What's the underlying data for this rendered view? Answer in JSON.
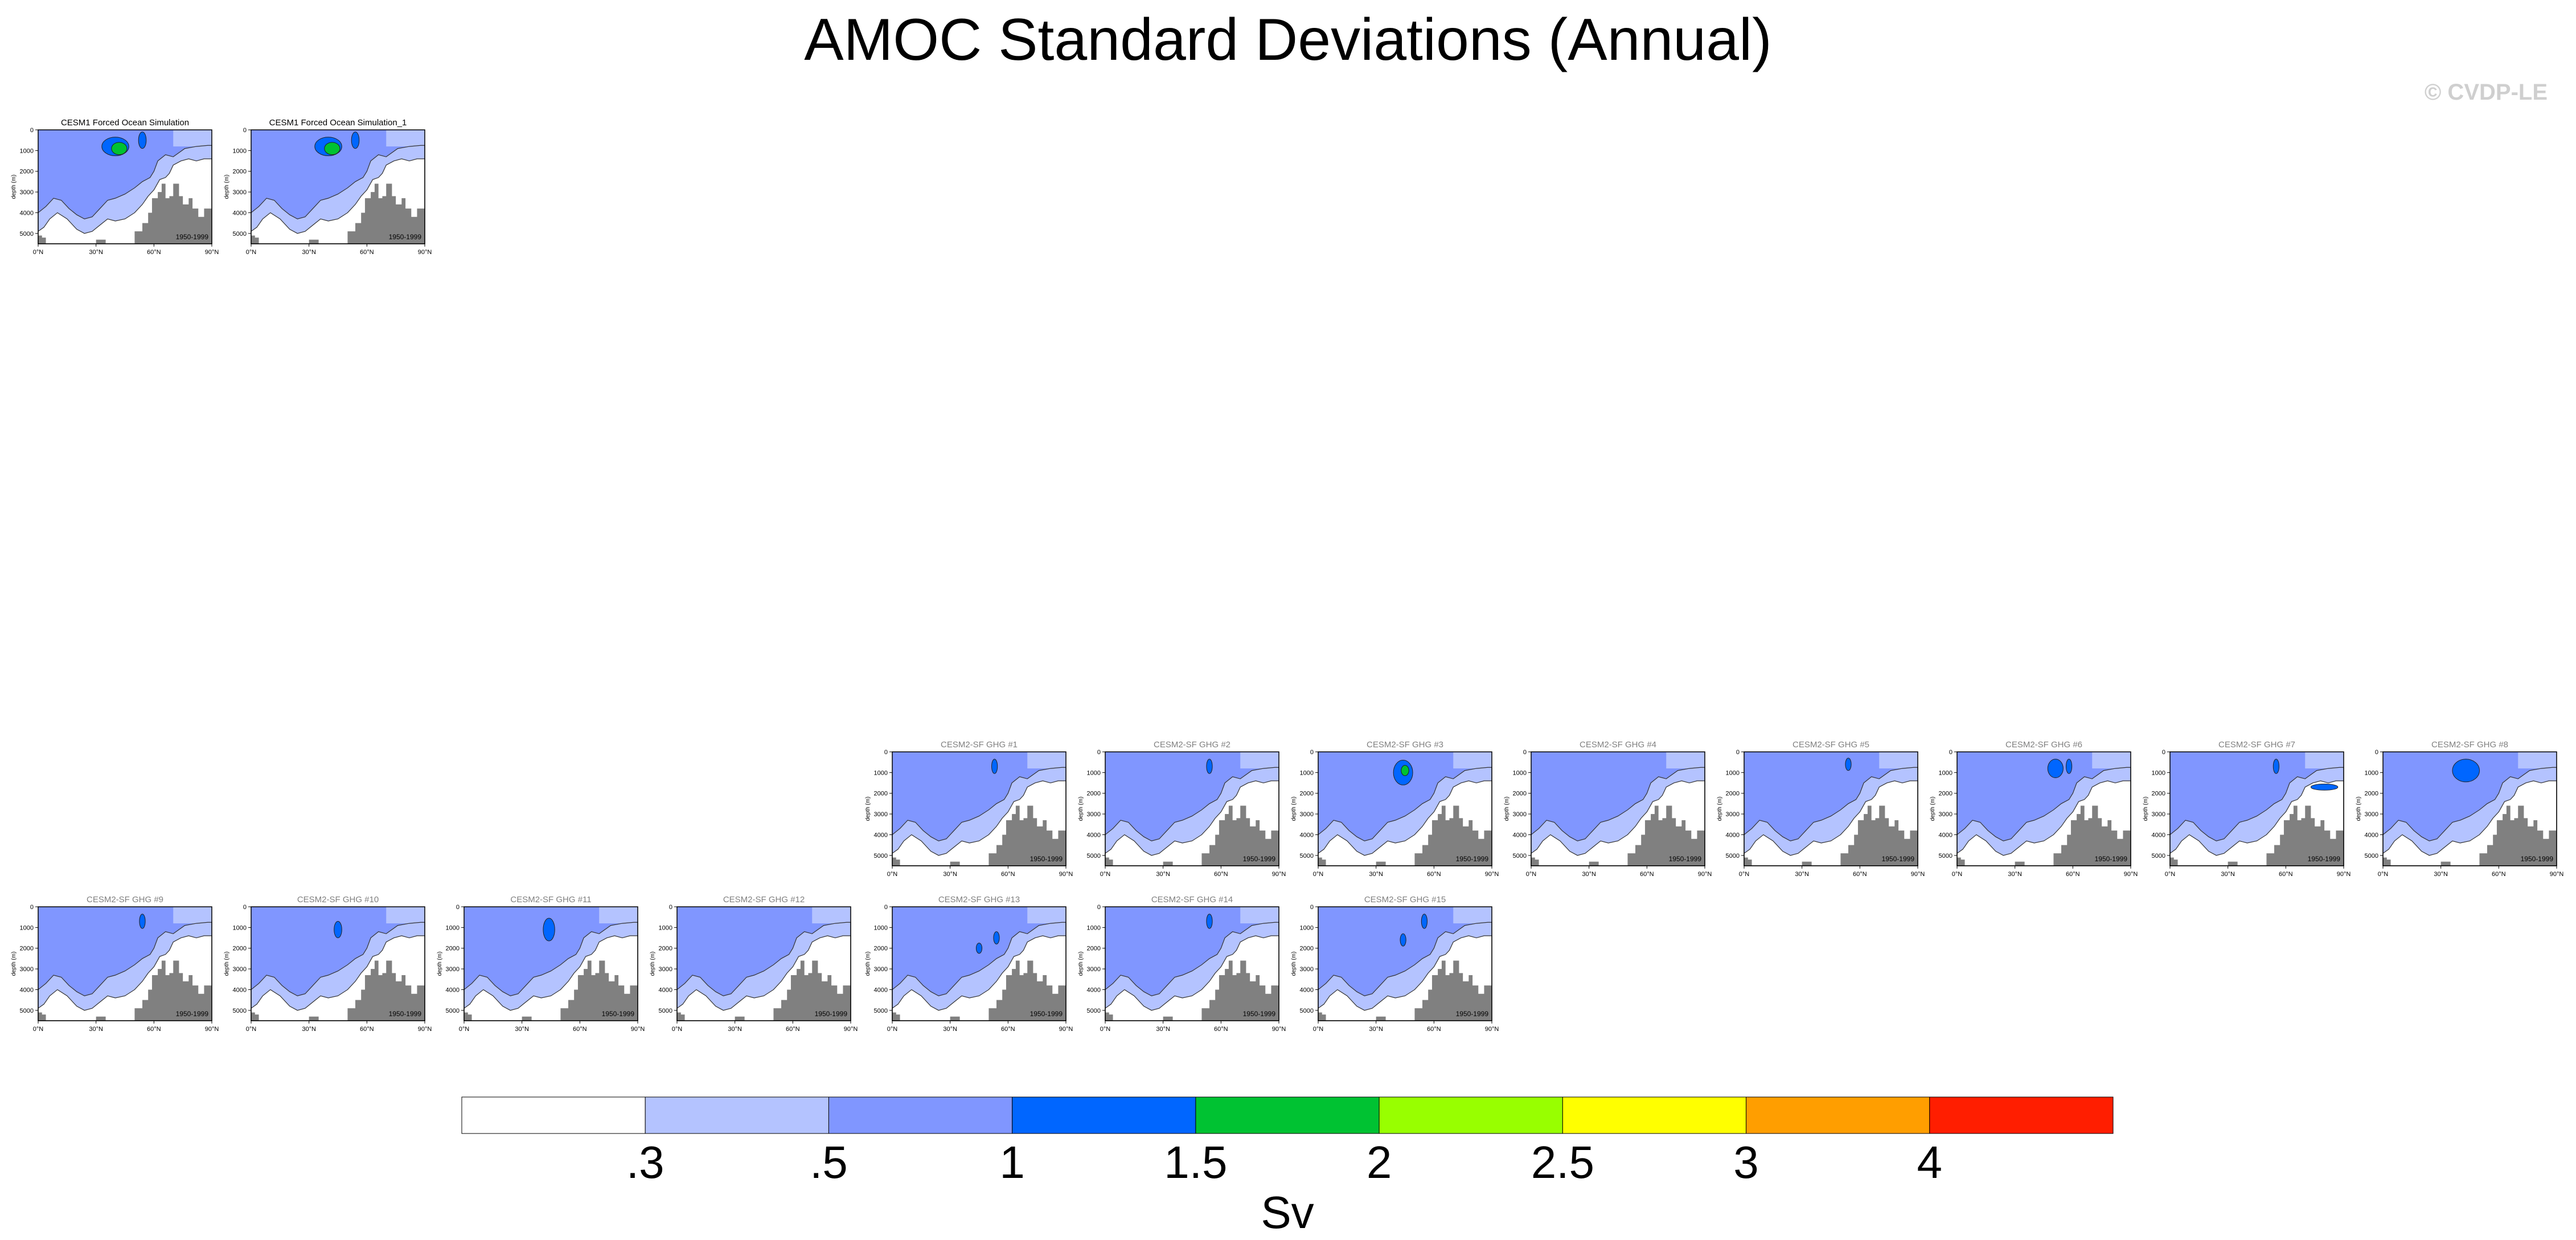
{
  "title": "AMOC Standard Deviations (Annual)",
  "watermark": "© CVDP-LE",
  "chart_data": {
    "type": "heatmap",
    "description_variable": "Atlantic meridional overturning circulation annual standard deviation",
    "x_ticks": [
      "0°N",
      "30°N",
      "60°N",
      "90°N"
    ],
    "y_ticks": [
      "0",
      "1000",
      "2000",
      "3000",
      "4000",
      "5000"
    ],
    "y_label": "depth (m)",
    "period": "1950-1999",
    "colorbar": {
      "unit": "Sv",
      "levels": [
        ".3",
        ".5",
        "1",
        "1.5",
        "2",
        "2.5",
        "3",
        "4"
      ],
      "colors": [
        "#ffffff",
        "#b4c3ff",
        "#8096ff",
        "#0066ff",
        "#00c232",
        "#98ff00",
        "#ffff00",
        "#ff9e00",
        "#ff1e00"
      ]
    },
    "panels": [
      {
        "title": "CESM1 Forced Ocean Simulation",
        "title_color": "#000000",
        "max_class": 4,
        "features": [
          {
            "lat": 40,
            "depth": 800,
            "rx": 7,
            "ry": 450,
            "c": 3
          },
          {
            "lat": 42,
            "depth": 900,
            "rx": 4,
            "ry": 300,
            "c": 4
          },
          {
            "lat": 54,
            "depth": 500,
            "rx": 2,
            "ry": 400,
            "c": 3
          }
        ]
      },
      {
        "title": "CESM1 Forced Ocean Simulation_1",
        "title_color": "#000000",
        "max_class": 4,
        "features": [
          {
            "lat": 40,
            "depth": 800,
            "rx": 7,
            "ry": 450,
            "c": 3
          },
          {
            "lat": 42,
            "depth": 900,
            "rx": 4,
            "ry": 300,
            "c": 4
          },
          {
            "lat": 54,
            "depth": 500,
            "rx": 2,
            "ry": 400,
            "c": 3
          }
        ]
      },
      {
        "title": "CESM2-SF GHG #1",
        "title_color": "#808080",
        "features": [
          {
            "lat": 53,
            "depth": 700,
            "rx": 1.5,
            "ry": 350,
            "c": 3
          }
        ]
      },
      {
        "title": "CESM2-SF GHG #2",
        "title_color": "#808080",
        "features": [
          {
            "lat": 54,
            "depth": 700,
            "rx": 1.5,
            "ry": 350,
            "c": 3
          }
        ]
      },
      {
        "title": "CESM2-SF GHG #3",
        "title_color": "#808080",
        "features": [
          {
            "lat": 44,
            "depth": 1000,
            "rx": 5,
            "ry": 600,
            "c": 3
          },
          {
            "lat": 45,
            "depth": 900,
            "rx": 2,
            "ry": 250,
            "c": 4
          }
        ]
      },
      {
        "title": "CESM2-SF GHG #4",
        "title_color": "#808080",
        "features": []
      },
      {
        "title": "CESM2-SF GHG #5",
        "title_color": "#808080",
        "features": [
          {
            "lat": 54,
            "depth": 600,
            "rx": 1.5,
            "ry": 300,
            "c": 3
          }
        ]
      },
      {
        "title": "CESM2-SF GHG #6",
        "title_color": "#808080",
        "features": [
          {
            "lat": 51,
            "depth": 800,
            "rx": 4,
            "ry": 450,
            "c": 3
          },
          {
            "lat": 58,
            "depth": 700,
            "rx": 1.5,
            "ry": 350,
            "c": 3
          }
        ]
      },
      {
        "title": "CESM2-SF GHG #7",
        "title_color": "#808080",
        "features": [
          {
            "lat": 55,
            "depth": 700,
            "rx": 1.5,
            "ry": 350,
            "c": 3
          },
          {
            "lat": 80,
            "depth": 1700,
            "rx": 7,
            "ry": 150,
            "c": 3
          }
        ]
      },
      {
        "title": "CESM2-SF GHG #8",
        "title_color": "#808080",
        "features": [
          {
            "lat": 43,
            "depth": 900,
            "rx": 7,
            "ry": 550,
            "c": 3
          }
        ]
      },
      {
        "title": "CESM2-SF GHG #9",
        "title_color": "#808080",
        "features": [
          {
            "lat": 54,
            "depth": 700,
            "rx": 1.5,
            "ry": 350,
            "c": 3
          }
        ]
      },
      {
        "title": "CESM2-SF GHG #10",
        "title_color": "#808080",
        "features": [
          {
            "lat": 45,
            "depth": 1100,
            "rx": 2,
            "ry": 400,
            "c": 3
          }
        ]
      },
      {
        "title": "CESM2-SF GHG #11",
        "title_color": "#808080",
        "features": [
          {
            "lat": 44,
            "depth": 1100,
            "rx": 3,
            "ry": 550,
            "c": 3
          }
        ]
      },
      {
        "title": "CESM2-SF GHG #12",
        "title_color": "#808080",
        "features": []
      },
      {
        "title": "CESM2-SF GHG #13",
        "title_color": "#808080",
        "features": [
          {
            "lat": 45,
            "depth": 2000,
            "rx": 1.5,
            "ry": 250,
            "c": 3
          },
          {
            "lat": 54,
            "depth": 1500,
            "rx": 1.5,
            "ry": 300,
            "c": 3
          }
        ]
      },
      {
        "title": "CESM2-SF GHG #14",
        "title_color": "#808080",
        "features": [
          {
            "lat": 54,
            "depth": 700,
            "rx": 1.5,
            "ry": 350,
            "c": 3
          }
        ]
      },
      {
        "title": "CESM2-SF GHG #15",
        "title_color": "#808080",
        "features": [
          {
            "lat": 44,
            "depth": 1600,
            "rx": 1.5,
            "ry": 300,
            "c": 3
          },
          {
            "lat": 55,
            "depth": 700,
            "rx": 1.5,
            "ry": 350,
            "c": 3
          }
        ]
      }
    ]
  }
}
